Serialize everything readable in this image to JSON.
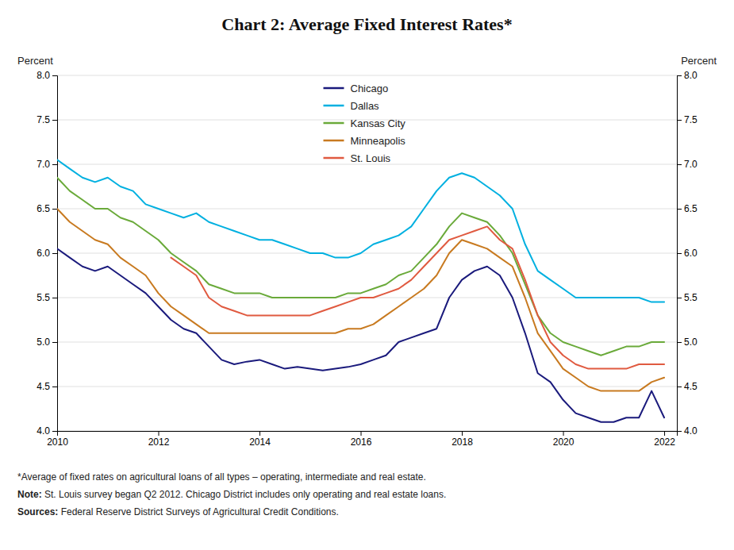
{
  "chart_data": {
    "type": "line",
    "title": "Chart 2: Average Fixed Interest Rates*",
    "ylabel": "Percent",
    "y2label": "Percent",
    "annotations": [
      [
        "*Average of fixed rates on agricultural loans of all types – operating, intermediate and real estate."
      ],
      [
        "Note:",
        " St. Louis survey began Q2 2012. Chicago District includes only operating and real estate loans."
      ],
      [
        "Sources:",
        " Federal Reserve District Surveys of Agricultural Credit Conditions."
      ]
    ],
    "x": [
      2010,
      2010.25,
      2010.5,
      2010.75,
      2011,
      2011.25,
      2011.5,
      2011.75,
      2012,
      2012.25,
      2012.5,
      2012.75,
      2013,
      2013.25,
      2013.5,
      2013.75,
      2014,
      2014.25,
      2014.5,
      2014.75,
      2015,
      2015.25,
      2015.5,
      2015.75,
      2016,
      2016.25,
      2016.5,
      2016.75,
      2017,
      2017.25,
      2017.5,
      2017.75,
      2018,
      2018.25,
      2018.5,
      2018.75,
      2019,
      2019.25,
      2019.5,
      2019.75,
      2020,
      2020.25,
      2020.5,
      2020.75,
      2021,
      2021.25,
      2021.5,
      2021.75,
      2022
    ],
    "xlim": [
      2010,
      2022.25
    ],
    "xticks": [
      2010,
      2012,
      2014,
      2016,
      2018,
      2020,
      2022
    ],
    "ylim": [
      4.0,
      8.0
    ],
    "yticks": [
      {
        "value": 4,
        "label": "4.0"
      },
      4.5,
      {
        "value": 5,
        "label": "5.0"
      },
      5.5,
      {
        "value": 6,
        "label": "6.0"
      },
      6.5,
      {
        "value": 7,
        "label": "7.0"
      },
      7.5,
      {
        "value": 8,
        "label": "8.0"
      }
    ],
    "y2lim": [
      4.0,
      8.0
    ],
    "y2ticks": [
      {
        "value": 4,
        "label": "4.0"
      },
      4.5,
      {
        "value": 5,
        "label": "5.0"
      },
      5.5,
      {
        "value": 6,
        "label": "6.0"
      },
      6.5,
      {
        "value": 7,
        "label": "7.0"
      },
      7.5,
      {
        "value": 8,
        "label": "8.0"
      }
    ],
    "grid": true,
    "legend": "top",
    "series": [
      {
        "name": "Chicago",
        "color": "#1a1a7c",
        "values": [
          6.05,
          5.95,
          5.85,
          5.8,
          5.85,
          5.75,
          5.65,
          5.55,
          5.4,
          5.25,
          5.15,
          5.1,
          4.95,
          4.8,
          4.75,
          4.78,
          4.8,
          4.75,
          4.7,
          4.72,
          4.7,
          4.68,
          4.7,
          4.72,
          4.75,
          4.8,
          4.85,
          5.0,
          5.05,
          5.1,
          5.15,
          5.5,
          5.7,
          5.8,
          5.85,
          5.75,
          5.5,
          5.1,
          4.65,
          4.55,
          4.35,
          4.2,
          4.15,
          4.1,
          4.1,
          4.15,
          4.15,
          4.45,
          4.15
        ]
      },
      {
        "name": "Dallas",
        "color": "#00b0e0",
        "values": [
          7.05,
          6.95,
          6.85,
          6.8,
          6.85,
          6.75,
          6.7,
          6.55,
          6.5,
          6.45,
          6.4,
          6.45,
          6.35,
          6.3,
          6.25,
          6.2,
          6.15,
          6.15,
          6.1,
          6.05,
          6.0,
          6.0,
          5.95,
          5.95,
          6.0,
          6.1,
          6.15,
          6.2,
          6.3,
          6.5,
          6.7,
          6.85,
          6.9,
          6.85,
          6.75,
          6.65,
          6.5,
          6.1,
          5.8,
          5.7,
          5.6,
          5.5,
          5.5,
          5.5,
          5.5,
          5.5,
          5.5,
          5.45,
          5.45
        ]
      },
      {
        "name": "Kansas City",
        "color": "#6aaa3a",
        "values": [
          6.85,
          6.7,
          6.6,
          6.5,
          6.5,
          6.4,
          6.35,
          6.25,
          6.15,
          6.0,
          5.9,
          5.8,
          5.65,
          5.6,
          5.55,
          5.55,
          5.55,
          5.5,
          5.5,
          5.5,
          5.5,
          5.5,
          5.5,
          5.55,
          5.55,
          5.6,
          5.65,
          5.75,
          5.8,
          5.95,
          6.1,
          6.3,
          6.45,
          6.4,
          6.35,
          6.2,
          6.0,
          5.65,
          5.3,
          5.1,
          5.0,
          4.95,
          4.9,
          4.85,
          4.9,
          4.95,
          4.95,
          5.0,
          5.0
        ]
      },
      {
        "name": "Minneapolis",
        "color": "#c87a20",
        "values": [
          6.5,
          6.35,
          6.25,
          6.15,
          6.1,
          5.95,
          5.85,
          5.75,
          5.55,
          5.4,
          5.3,
          5.2,
          5.1,
          5.1,
          5.1,
          5.1,
          5.1,
          5.1,
          5.1,
          5.1,
          5.1,
          5.1,
          5.1,
          5.15,
          5.15,
          5.2,
          5.3,
          5.4,
          5.5,
          5.6,
          5.75,
          6.0,
          6.15,
          6.1,
          6.05,
          5.95,
          5.85,
          5.5,
          5.1,
          4.9,
          4.7,
          4.6,
          4.5,
          4.45,
          4.45,
          4.45,
          4.45,
          4.55,
          4.6
        ]
      },
      {
        "name": "St. Louis",
        "color": "#e05a40",
        "values": [
          null,
          null,
          null,
          null,
          null,
          null,
          null,
          null,
          null,
          5.95,
          5.85,
          5.75,
          5.5,
          5.4,
          5.35,
          5.3,
          5.3,
          5.3,
          5.3,
          5.3,
          5.3,
          5.35,
          5.4,
          5.45,
          5.5,
          5.5,
          5.55,
          5.6,
          5.7,
          5.85,
          6.0,
          6.15,
          6.2,
          6.25,
          6.3,
          6.15,
          6.05,
          5.7,
          5.3,
          5.0,
          4.85,
          4.75,
          4.7,
          4.7,
          4.7,
          4.7,
          4.75,
          4.75,
          4.75
        ]
      }
    ]
  }
}
